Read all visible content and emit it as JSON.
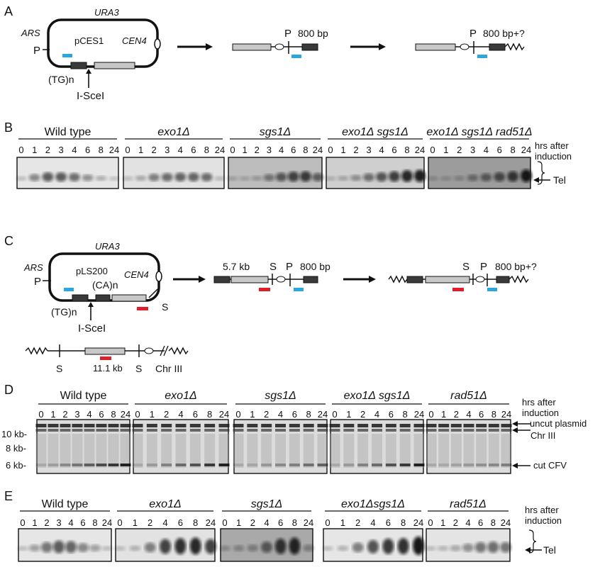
{
  "panel_letters": [
    "A",
    "B",
    "C",
    "D",
    "E"
  ],
  "panelA": {
    "ura3": "URA3",
    "ars": "ARS",
    "p": "P",
    "plasmid": "pCES1",
    "cen4": "CEN4",
    "tg": "(TG)n",
    "isce": "I-SceI",
    "p2": "P",
    "bp1": "800 bp",
    "p3": "P",
    "bp2": "800 bp+?"
  },
  "panelB": {
    "hrs": [
      "hrs after",
      "induction"
    ],
    "tel": "Tel",
    "lanes": [
      "0",
      "1",
      "2",
      "3",
      "4",
      "6",
      "8",
      "24"
    ],
    "strains": [
      {
        "id": "wt",
        "title": "Wild type",
        "italic": false,
        "lanes": [
          "0",
          "1",
          "2",
          "3",
          "4",
          "6",
          "8",
          "24"
        ]
      },
      {
        "id": "exo1",
        "title": "exo1Δ",
        "italic": true,
        "lanes": [
          "0",
          "1",
          "2",
          "3",
          "4",
          "6",
          "8",
          "24"
        ]
      },
      {
        "id": "sgs1",
        "title": "sgs1Δ",
        "italic": true,
        "lanes": [
          "0",
          "1",
          "2",
          "3",
          "4",
          "6",
          "8",
          "24"
        ]
      },
      {
        "id": "exo1sgs1",
        "title": "exo1Δ sgs1Δ",
        "italic": true,
        "lanes": [
          "0",
          "1",
          "2",
          "3",
          "4",
          "6",
          "8",
          "24"
        ]
      },
      {
        "id": "triple",
        "title": "exo1Δ sgs1Δ rad51Δ",
        "italic": true,
        "lanes": [
          "0",
          "1",
          "2",
          "3",
          "4",
          "6",
          "8",
          "24"
        ]
      }
    ]
  },
  "panelC": {
    "ura3": "URA3",
    "ars": "ARS",
    "p": "P",
    "plasmid": "pLS200",
    "cen4": "CEN4",
    "ca": "(CA)n",
    "tg": "(TG)n",
    "isce": "I-SceI",
    "s": "S",
    "kb57": "5.7 kb",
    "s2": "S",
    "p2": "P",
    "bp1": "800 bp",
    "s3": "S",
    "p3": "P",
    "bp2": "800 bp+?",
    "chr_s1": "S",
    "kb111": "11.1 kb",
    "chr_s2": "S",
    "chr": "Chr III"
  },
  "panelD": {
    "hrs": [
      "hrs after",
      "induction"
    ],
    "markers": [
      "10 kb-",
      "8 kb-",
      "6 kb-"
    ],
    "bands": [
      "uncut plasmid",
      "Chr III",
      "cut CFV"
    ],
    "strains": [
      {
        "id": "wt",
        "title": "Wild type",
        "italic": false,
        "lanes": [
          "0",
          "1",
          "2",
          "3",
          "4",
          "6",
          "8",
          "24"
        ]
      },
      {
        "id": "exo1",
        "title": "exo1Δ",
        "italic": true,
        "lanes": [
          "0",
          "1",
          "2",
          "4",
          "6",
          "8",
          "24"
        ]
      },
      {
        "id": "sgs1",
        "title": "sgs1Δ",
        "italic": true,
        "lanes": [
          "0",
          "1",
          "2",
          "4",
          "6",
          "8",
          "24"
        ]
      },
      {
        "id": "exo1sgs1",
        "title": "exo1Δ sgs1Δ",
        "italic": true,
        "lanes": [
          "0",
          "1",
          "2",
          "4",
          "6",
          "8",
          "24"
        ]
      },
      {
        "id": "rad51",
        "title": "rad51Δ",
        "italic": true,
        "lanes": [
          "0",
          "1",
          "2",
          "4",
          "6",
          "8",
          "24"
        ]
      }
    ]
  },
  "panelE": {
    "hrs": [
      "hrs after",
      "induction"
    ],
    "tel": "Tel",
    "strains": [
      {
        "id": "wt",
        "title": "Wild type",
        "italic": false,
        "lanes": [
          "0",
          "1",
          "2",
          "3",
          "4",
          "6",
          "8",
          "24"
        ]
      },
      {
        "id": "exo1",
        "title": "exo1Δ",
        "italic": true,
        "lanes": [
          "0",
          "1",
          "2",
          "4",
          "6",
          "8",
          "24"
        ]
      },
      {
        "id": "sgs1",
        "title": "sgs1Δ",
        "italic": true,
        "lanes": [
          "0",
          "1",
          "2",
          "4",
          "6",
          "8",
          "24"
        ]
      },
      {
        "id": "exo1sgs1",
        "title": "exo1Δsgs1Δ",
        "italic": true,
        "lanes": [
          "0",
          "1",
          "2",
          "4",
          "6",
          "8",
          "24"
        ]
      },
      {
        "id": "rad51",
        "title": "rad51Δ",
        "italic": true,
        "lanes": [
          "0",
          "1",
          "2",
          "4",
          "6",
          "8",
          "24"
        ]
      }
    ]
  },
  "colors": {
    "blue_probe": "#2aa6e0",
    "red_probe": "#e01e2a",
    "dark_box": "#3a3a3a",
    "light_box": "#c8c8c8"
  }
}
